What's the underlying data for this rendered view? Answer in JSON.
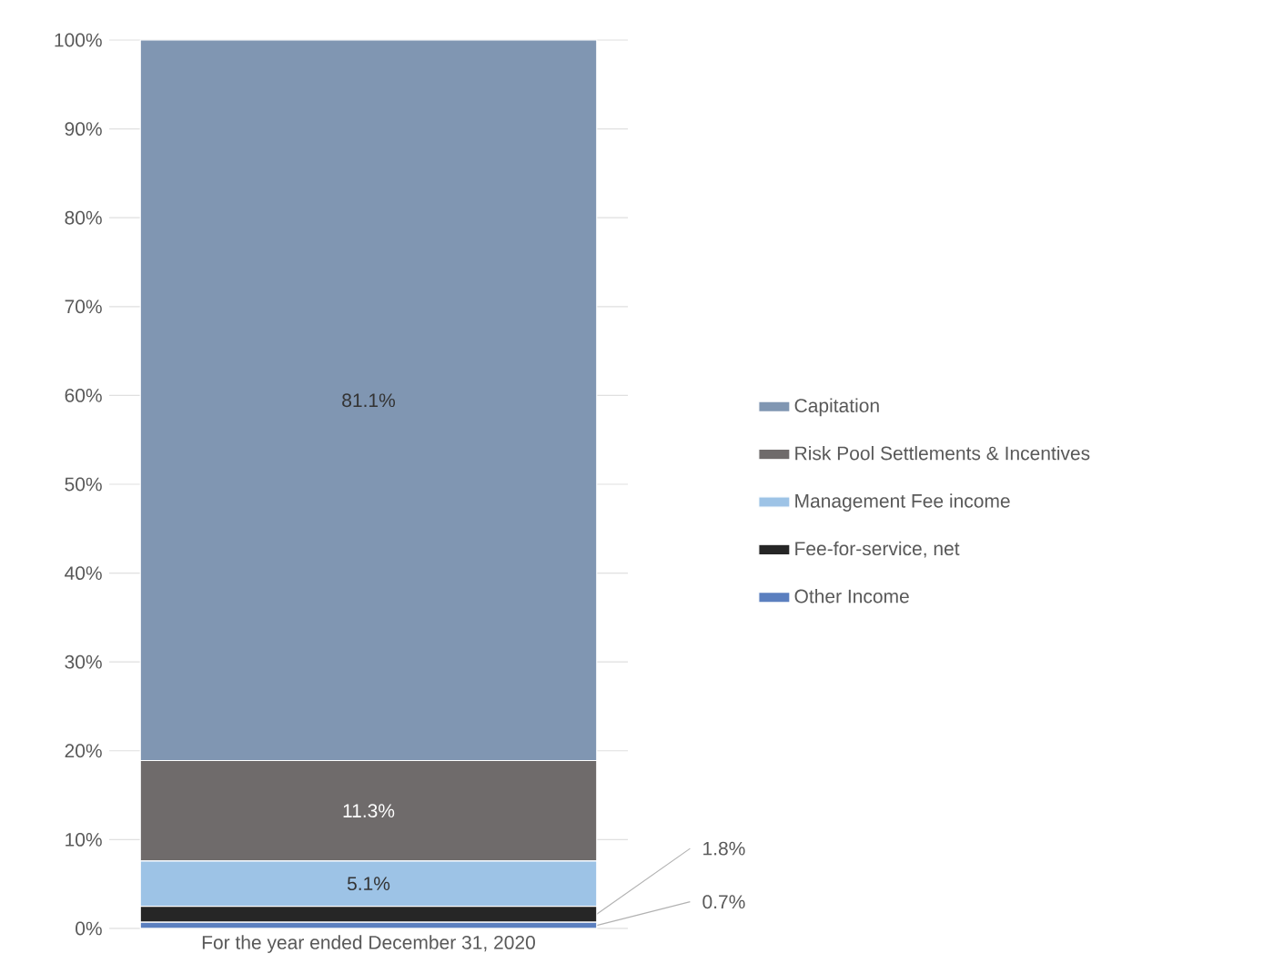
{
  "chart_data": {
    "type": "bar",
    "stacked": true,
    "categories": [
      "For the year ended December 31, 2020"
    ],
    "series": [
      {
        "name": "Other Income",
        "color": "#5b7fbf",
        "values": [
          0.7
        ],
        "value_labels": [
          "0.7%"
        ]
      },
      {
        "name": "Fee-for-service, net",
        "color": "#262626",
        "values": [
          1.8
        ],
        "value_labels": [
          "1.8%"
        ]
      },
      {
        "name": "Management Fee income",
        "color": "#9dc3e6",
        "values": [
          5.1
        ],
        "value_labels": [
          "5.1%"
        ]
      },
      {
        "name": "Risk Pool Settlements & Incentives",
        "color": "#6f6b6b",
        "values": [
          11.3
        ],
        "value_labels": [
          "11.3%"
        ]
      },
      {
        "name": "Capitation",
        "color": "#8096b2",
        "values": [
          81.1
        ],
        "value_labels": [
          "81.1%"
        ]
      }
    ],
    "ylim": [
      0,
      100
    ],
    "yticks": [
      {
        "value": 0,
        "label": "0%"
      },
      {
        "value": 10,
        "label": "10%"
      },
      {
        "value": 20,
        "label": "20%"
      },
      {
        "value": 30,
        "label": "30%"
      },
      {
        "value": 40,
        "label": "40%"
      },
      {
        "value": 50,
        "label": "50%"
      },
      {
        "value": 60,
        "label": "60%"
      },
      {
        "value": 70,
        "label": "70%"
      },
      {
        "value": 80,
        "label": "80%"
      },
      {
        "value": 90,
        "label": "90%"
      },
      {
        "value": 100,
        "label": "100%"
      }
    ],
    "grid": "y",
    "legend": "right"
  }
}
